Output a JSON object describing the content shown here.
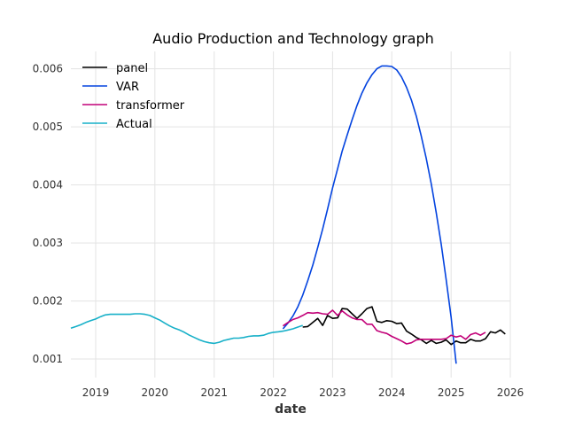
{
  "chart_data": {
    "type": "line",
    "title": "Audio Production and Technology graph",
    "xlabel": "date",
    "ylabel": "",
    "xlim": [
      "2018-08-01",
      "2026-01-01"
    ],
    "ylim": [
      0.00068,
      0.0063
    ],
    "grid": true,
    "legend_position": "top-left",
    "x_ticks": [
      "2019",
      "2020",
      "2021",
      "2022",
      "2023",
      "2024",
      "2025",
      "2026"
    ],
    "y_ticks": [
      "0.001",
      "0.002",
      "0.003",
      "0.004",
      "0.005",
      "0.006"
    ],
    "series": [
      {
        "name": "panel",
        "color": "#000000",
        "points": [
          [
            "2022-07-01",
            0.00155
          ],
          [
            "2022-08-01",
            0.00156
          ],
          [
            "2022-09-01",
            0.00163
          ],
          [
            "2022-10-01",
            0.0017
          ],
          [
            "2022-11-01",
            0.00158
          ],
          [
            "2022-12-01",
            0.00175
          ],
          [
            "2023-01-01",
            0.0017
          ],
          [
            "2023-02-01",
            0.00171
          ],
          [
            "2023-03-01",
            0.00187
          ],
          [
            "2023-04-01",
            0.00186
          ],
          [
            "2023-05-01",
            0.00178
          ],
          [
            "2023-06-01",
            0.0017
          ],
          [
            "2023-07-01",
            0.00178
          ],
          [
            "2023-08-01",
            0.00187
          ],
          [
            "2023-09-01",
            0.0019
          ],
          [
            "2023-10-01",
            0.00165
          ],
          [
            "2023-11-01",
            0.00163
          ],
          [
            "2023-12-01",
            0.00166
          ],
          [
            "2024-01-01",
            0.00165
          ],
          [
            "2024-02-01",
            0.00161
          ],
          [
            "2024-03-01",
            0.00162
          ],
          [
            "2024-04-01",
            0.00148
          ],
          [
            "2024-05-01",
            0.00143
          ],
          [
            "2024-06-01",
            0.00137
          ],
          [
            "2024-07-01",
            0.00133
          ],
          [
            "2024-08-01",
            0.00127
          ],
          [
            "2024-09-01",
            0.00132
          ],
          [
            "2024-10-01",
            0.00127
          ],
          [
            "2024-11-01",
            0.00129
          ],
          [
            "2024-12-01",
            0.00133
          ],
          [
            "2025-01-01",
            0.00125
          ],
          [
            "2025-02-01",
            0.00131
          ],
          [
            "2025-03-01",
            0.00128
          ],
          [
            "2025-04-01",
            0.00128
          ],
          [
            "2025-05-01",
            0.00134
          ],
          [
            "2025-06-01",
            0.00131
          ],
          [
            "2025-07-01",
            0.00131
          ],
          [
            "2025-08-01",
            0.00135
          ],
          [
            "2025-09-01",
            0.00147
          ],
          [
            "2025-10-01",
            0.00145
          ],
          [
            "2025-11-01",
            0.0015
          ],
          [
            "2025-12-01",
            0.00143
          ]
        ]
      },
      {
        "name": "VAR",
        "color": "#0343df",
        "points": [
          [
            "2022-03-01",
            0.00152
          ],
          [
            "2022-04-01",
            0.00162
          ],
          [
            "2022-05-01",
            0.00174
          ],
          [
            "2022-06-01",
            0.0019
          ],
          [
            "2022-07-01",
            0.0021
          ],
          [
            "2022-08-01",
            0.00235
          ],
          [
            "2022-09-01",
            0.00262
          ],
          [
            "2022-10-01",
            0.00292
          ],
          [
            "2022-11-01",
            0.00324
          ],
          [
            "2022-12-01",
            0.00358
          ],
          [
            "2023-01-01",
            0.00395
          ],
          [
            "2023-02-01",
            0.00428
          ],
          [
            "2023-03-01",
            0.00458
          ],
          [
            "2023-04-01",
            0.00486
          ],
          [
            "2023-05-01",
            0.00512
          ],
          [
            "2023-06-01",
            0.00537
          ],
          [
            "2023-07-01",
            0.00558
          ],
          [
            "2023-08-01",
            0.00576
          ],
          [
            "2023-09-01",
            0.0059
          ],
          [
            "2023-10-01",
            0.006
          ],
          [
            "2023-11-01",
            0.00605
          ],
          [
            "2023-12-01",
            0.00605
          ],
          [
            "2024-01-01",
            0.00604
          ],
          [
            "2024-02-01",
            0.00598
          ],
          [
            "2024-03-01",
            0.00586
          ],
          [
            "2024-04-01",
            0.00568
          ],
          [
            "2024-05-01",
            0.00546
          ],
          [
            "2024-06-01",
            0.00518
          ],
          [
            "2024-07-01",
            0.00484
          ],
          [
            "2024-08-01",
            0.00445
          ],
          [
            "2024-09-01",
            0.00401
          ],
          [
            "2024-10-01",
            0.00352
          ],
          [
            "2024-11-01",
            0.00298
          ],
          [
            "2024-12-01",
            0.00238
          ],
          [
            "2025-01-01",
            0.00172
          ],
          [
            "2025-02-01",
            0.00092
          ]
        ]
      },
      {
        "name": "transformer",
        "color": "#c20078",
        "points": [
          [
            "2022-03-01",
            0.00157
          ],
          [
            "2022-04-01",
            0.00163
          ],
          [
            "2022-05-01",
            0.00168
          ],
          [
            "2022-06-01",
            0.00171
          ],
          [
            "2022-07-01",
            0.00175
          ],
          [
            "2022-08-01",
            0.0018
          ],
          [
            "2022-09-01",
            0.00179
          ],
          [
            "2022-10-01",
            0.0018
          ],
          [
            "2022-11-01",
            0.00178
          ],
          [
            "2022-12-01",
            0.00177
          ],
          [
            "2023-01-01",
            0.00184
          ],
          [
            "2023-02-01",
            0.00175
          ],
          [
            "2023-03-01",
            0.00183
          ],
          [
            "2023-04-01",
            0.00176
          ],
          [
            "2023-05-01",
            0.00171
          ],
          [
            "2023-06-01",
            0.00168
          ],
          [
            "2023-07-01",
            0.00168
          ],
          [
            "2023-08-01",
            0.0016
          ],
          [
            "2023-09-01",
            0.0016
          ],
          [
            "2023-10-01",
            0.00149
          ],
          [
            "2023-11-01",
            0.00146
          ],
          [
            "2023-12-01",
            0.00144
          ],
          [
            "2024-01-01",
            0.00139
          ],
          [
            "2024-02-01",
            0.00135
          ],
          [
            "2024-03-01",
            0.00131
          ],
          [
            "2024-04-01",
            0.00126
          ],
          [
            "2024-05-01",
            0.00128
          ],
          [
            "2024-06-01",
            0.00133
          ],
          [
            "2024-07-01",
            0.00134
          ],
          [
            "2024-08-01",
            0.00134
          ],
          [
            "2024-09-01",
            0.00134
          ],
          [
            "2024-10-01",
            0.00134
          ],
          [
            "2024-11-01",
            0.00134
          ],
          [
            "2024-12-01",
            0.00135
          ],
          [
            "2025-01-01",
            0.00141
          ],
          [
            "2025-02-01",
            0.00138
          ],
          [
            "2025-03-01",
            0.0014
          ],
          [
            "2025-04-01",
            0.00134
          ],
          [
            "2025-05-01",
            0.00142
          ],
          [
            "2025-06-01",
            0.00145
          ],
          [
            "2025-07-01",
            0.00141
          ],
          [
            "2025-08-01",
            0.00146
          ]
        ]
      },
      {
        "name": "Actual",
        "color": "#17b0c8",
        "points": [
          [
            "2018-08-01",
            0.00153
          ],
          [
            "2018-09-01",
            0.00156
          ],
          [
            "2018-10-01",
            0.00159
          ],
          [
            "2018-11-01",
            0.00163
          ],
          [
            "2018-12-01",
            0.00166
          ],
          [
            "2019-01-01",
            0.00169
          ],
          [
            "2019-02-01",
            0.00173
          ],
          [
            "2019-03-01",
            0.00176
          ],
          [
            "2019-04-01",
            0.00177
          ],
          [
            "2019-05-01",
            0.00177
          ],
          [
            "2019-06-01",
            0.00177
          ],
          [
            "2019-07-01",
            0.00177
          ],
          [
            "2019-08-01",
            0.00177
          ],
          [
            "2019-09-01",
            0.00178
          ],
          [
            "2019-10-01",
            0.00178
          ],
          [
            "2019-11-01",
            0.00177
          ],
          [
            "2019-12-01",
            0.00175
          ],
          [
            "2020-01-01",
            0.00171
          ],
          [
            "2020-02-01",
            0.00167
          ],
          [
            "2020-03-01",
            0.00162
          ],
          [
            "2020-04-01",
            0.00157
          ],
          [
            "2020-05-01",
            0.00153
          ],
          [
            "2020-06-01",
            0.0015
          ],
          [
            "2020-07-01",
            0.00146
          ],
          [
            "2020-08-01",
            0.00141
          ],
          [
            "2020-09-01",
            0.00137
          ],
          [
            "2020-10-01",
            0.00133
          ],
          [
            "2020-11-01",
            0.0013
          ],
          [
            "2020-12-01",
            0.00128
          ],
          [
            "2021-01-01",
            0.00127
          ],
          [
            "2021-02-01",
            0.00129
          ],
          [
            "2021-03-01",
            0.00132
          ],
          [
            "2021-04-01",
            0.00134
          ],
          [
            "2021-05-01",
            0.00136
          ],
          [
            "2021-06-01",
            0.00136
          ],
          [
            "2021-07-01",
            0.00137
          ],
          [
            "2021-08-01",
            0.00139
          ],
          [
            "2021-09-01",
            0.0014
          ],
          [
            "2021-10-01",
            0.0014
          ],
          [
            "2021-11-01",
            0.00141
          ],
          [
            "2021-12-01",
            0.00144
          ],
          [
            "2022-01-01",
            0.00146
          ],
          [
            "2022-02-01",
            0.00147
          ],
          [
            "2022-03-01",
            0.00148
          ],
          [
            "2022-04-01",
            0.0015
          ],
          [
            "2022-05-01",
            0.00152
          ],
          [
            "2022-06-01",
            0.00155
          ],
          [
            "2022-07-01",
            0.00158
          ]
        ]
      }
    ]
  }
}
